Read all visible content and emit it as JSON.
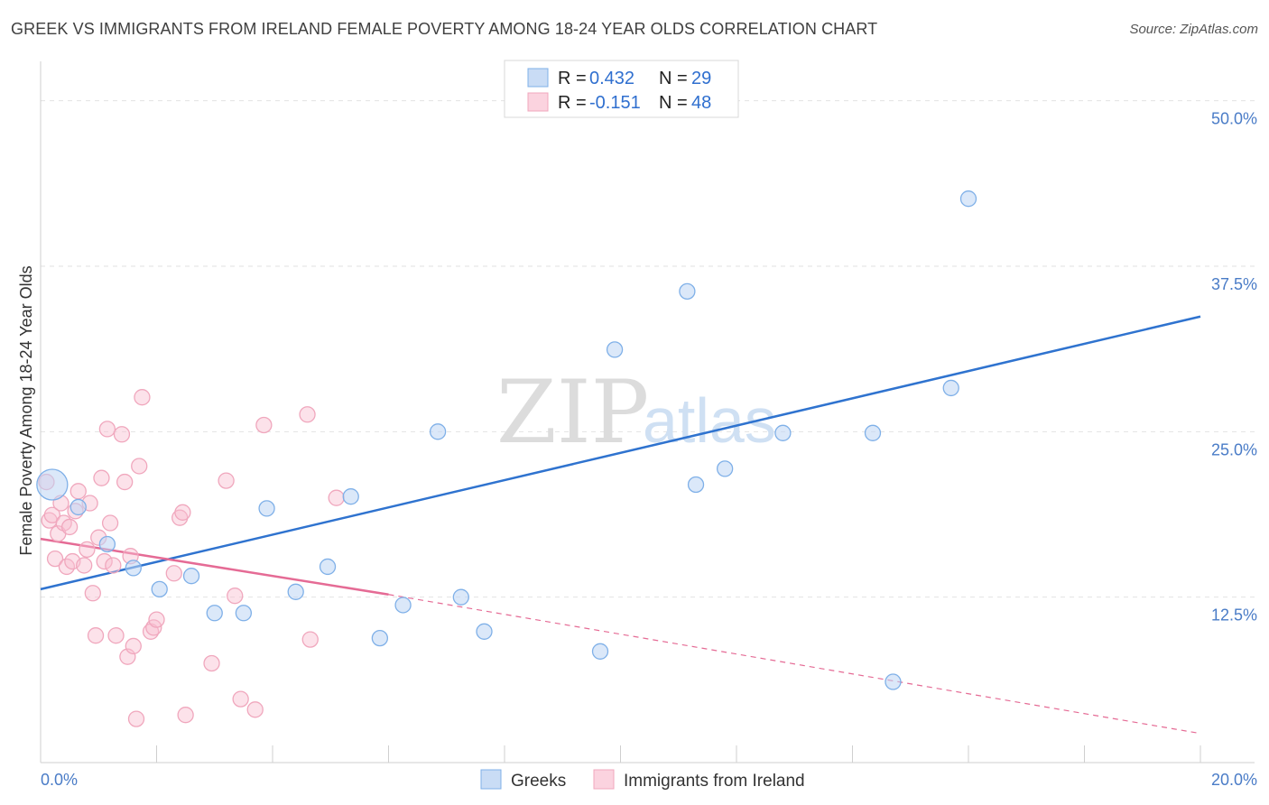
{
  "title": "GREEK VS IMMIGRANTS FROM IRELAND FEMALE POVERTY AMONG 18-24 YEAR OLDS CORRELATION CHART",
  "source": "Source: ZipAtlas.com",
  "watermark": {
    "zip": "ZIP",
    "atlas": "atlas"
  },
  "legend": {
    "rows": [
      {
        "r_label": "R = ",
        "r_value": "0.432",
        "n_label": "N = ",
        "n_value": "29"
      },
      {
        "r_label": "R = ",
        "r_value": "-0.151",
        "n_label": "N = ",
        "n_value": "48"
      }
    ]
  },
  "bottom_legend": {
    "greeks": "Greeks",
    "ireland": "Immigrants from Ireland"
  },
  "chart_data": {
    "type": "scatter",
    "ylabel": "Female Poverty Among 18-24 Year Olds",
    "xlim": [
      0,
      20
    ],
    "ylim": [
      0,
      52.5
    ],
    "x_tick_labels": [
      {
        "value": 0,
        "label": "0.0%"
      },
      {
        "value": 20,
        "label": "20.0%"
      }
    ],
    "y_tick_labels": [
      {
        "value": 12.5,
        "label": "12.5%"
      },
      {
        "value": 25,
        "label": "25.0%"
      },
      {
        "value": 37.5,
        "label": "37.5%"
      },
      {
        "value": 50,
        "label": "50.0%"
      }
    ],
    "grid": true,
    "colors": {
      "greeks": "#7fb0e8",
      "greeks_line": "#2f73cf",
      "ireland": "#f0a7bd",
      "ireland_line": "#e56b95"
    },
    "series": [
      {
        "name": "Greeks",
        "r": 0.432,
        "n": 29,
        "trend": {
          "x0": 0,
          "y0": 13.1,
          "x1": 20,
          "y1": 33.7
        },
        "points": [
          {
            "x": 0.2,
            "y": 21.0,
            "big": true
          },
          {
            "x": 0.65,
            "y": 19.3
          },
          {
            "x": 1.15,
            "y": 16.5
          },
          {
            "x": 1.6,
            "y": 14.7
          },
          {
            "x": 2.05,
            "y": 13.1
          },
          {
            "x": 2.6,
            "y": 14.1
          },
          {
            "x": 3.0,
            "y": 11.3
          },
          {
            "x": 3.5,
            "y": 11.3
          },
          {
            "x": 3.9,
            "y": 19.2
          },
          {
            "x": 4.4,
            "y": 12.9
          },
          {
            "x": 4.95,
            "y": 14.8
          },
          {
            "x": 5.35,
            "y": 20.1
          },
          {
            "x": 5.85,
            "y": 9.4
          },
          {
            "x": 6.25,
            "y": 11.9
          },
          {
            "x": 6.85,
            "y": 25.0
          },
          {
            "x": 7.25,
            "y": 12.5
          },
          {
            "x": 7.65,
            "y": 9.9
          },
          {
            "x": 8.5,
            "y": 50.2
          },
          {
            "x": 9.65,
            "y": 8.4
          },
          {
            "x": 9.9,
            "y": 31.2
          },
          {
            "x": 10.65,
            "y": 49.7
          },
          {
            "x": 11.15,
            "y": 35.6
          },
          {
            "x": 11.3,
            "y": 21.0
          },
          {
            "x": 11.8,
            "y": 22.2
          },
          {
            "x": 12.8,
            "y": 24.9
          },
          {
            "x": 14.35,
            "y": 24.9
          },
          {
            "x": 14.7,
            "y": 6.1
          },
          {
            "x": 15.7,
            "y": 28.3
          },
          {
            "x": 16.0,
            "y": 42.6
          }
        ]
      },
      {
        "name": "Immigrants from Ireland",
        "r": -0.151,
        "n": 48,
        "trend": {
          "x0": 0,
          "y0": 16.9,
          "x1": 6.0,
          "y1": 12.7,
          "dash_x1": 20,
          "dash_y1": 2.2
        },
        "points": [
          {
            "x": 0.1,
            "y": 21.2
          },
          {
            "x": 0.15,
            "y": 18.3
          },
          {
            "x": 0.2,
            "y": 18.7
          },
          {
            "x": 0.25,
            "y": 15.4
          },
          {
            "x": 0.3,
            "y": 17.3
          },
          {
            "x": 0.35,
            "y": 19.6
          },
          {
            "x": 0.4,
            "y": 18.1
          },
          {
            "x": 0.45,
            "y": 14.8
          },
          {
            "x": 0.5,
            "y": 17.8
          },
          {
            "x": 0.55,
            "y": 15.2
          },
          {
            "x": 0.6,
            "y": 19.0
          },
          {
            "x": 0.65,
            "y": 20.5
          },
          {
            "x": 0.75,
            "y": 14.9
          },
          {
            "x": 0.8,
            "y": 16.1
          },
          {
            "x": 0.85,
            "y": 19.6
          },
          {
            "x": 0.9,
            "y": 12.8
          },
          {
            "x": 0.95,
            "y": 9.6
          },
          {
            "x": 1.0,
            "y": 17.0
          },
          {
            "x": 1.05,
            "y": 21.5
          },
          {
            "x": 1.1,
            "y": 15.2
          },
          {
            "x": 1.15,
            "y": 25.2
          },
          {
            "x": 1.2,
            "y": 18.1
          },
          {
            "x": 1.25,
            "y": 14.9
          },
          {
            "x": 1.3,
            "y": 9.6
          },
          {
            "x": 1.4,
            "y": 24.8
          },
          {
            "x": 1.45,
            "y": 21.2
          },
          {
            "x": 1.5,
            "y": 8.0
          },
          {
            "x": 1.55,
            "y": 15.6
          },
          {
            "x": 1.6,
            "y": 8.8
          },
          {
            "x": 1.7,
            "y": 22.4
          },
          {
            "x": 1.75,
            "y": 27.6
          },
          {
            "x": 1.65,
            "y": 3.3
          },
          {
            "x": 1.9,
            "y": 9.9
          },
          {
            "x": 1.95,
            "y": 10.2
          },
          {
            "x": 2.0,
            "y": 10.8
          },
          {
            "x": 2.3,
            "y": 14.3
          },
          {
            "x": 2.4,
            "y": 18.5
          },
          {
            "x": 2.45,
            "y": 18.9
          },
          {
            "x": 2.5,
            "y": 3.6
          },
          {
            "x": 2.95,
            "y": 7.5
          },
          {
            "x": 3.2,
            "y": 21.3
          },
          {
            "x": 3.35,
            "y": 12.6
          },
          {
            "x": 3.45,
            "y": 4.8
          },
          {
            "x": 3.7,
            "y": 4.0
          },
          {
            "x": 3.85,
            "y": 25.5
          },
          {
            "x": 4.6,
            "y": 26.3
          },
          {
            "x": 4.65,
            "y": 9.3
          },
          {
            "x": 5.1,
            "y": 20.0
          }
        ]
      }
    ]
  }
}
